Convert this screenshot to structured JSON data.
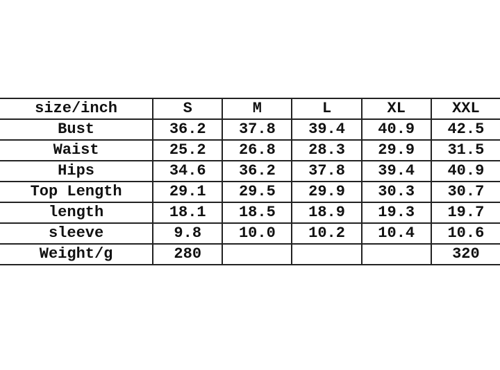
{
  "size_chart": {
    "header": [
      "size/inch",
      "S",
      "M",
      "L",
      "XL",
      "XXL"
    ],
    "rows": [
      {
        "label": "Bust",
        "values": [
          "36.2",
          "37.8",
          "39.4",
          "40.9",
          "42.5"
        ]
      },
      {
        "label": "Waist",
        "values": [
          "25.2",
          "26.8",
          "28.3",
          "29.9",
          "31.5"
        ]
      },
      {
        "label": "Hips",
        "values": [
          "34.6",
          "36.2",
          "37.8",
          "39.4",
          "40.9"
        ]
      },
      {
        "label": "Top Length",
        "values": [
          "29.1",
          "29.5",
          "29.9",
          "30.3",
          "30.7"
        ]
      },
      {
        "label": "length",
        "values": [
          "18.1",
          "18.5",
          "18.9",
          "19.3",
          "19.7"
        ]
      },
      {
        "label": "sleeve",
        "values": [
          "9.8",
          "10.0",
          "10.2",
          "10.4",
          "10.6"
        ]
      },
      {
        "label": "Weight/g",
        "values": [
          "280",
          "",
          "",
          "",
          "320"
        ]
      }
    ]
  }
}
